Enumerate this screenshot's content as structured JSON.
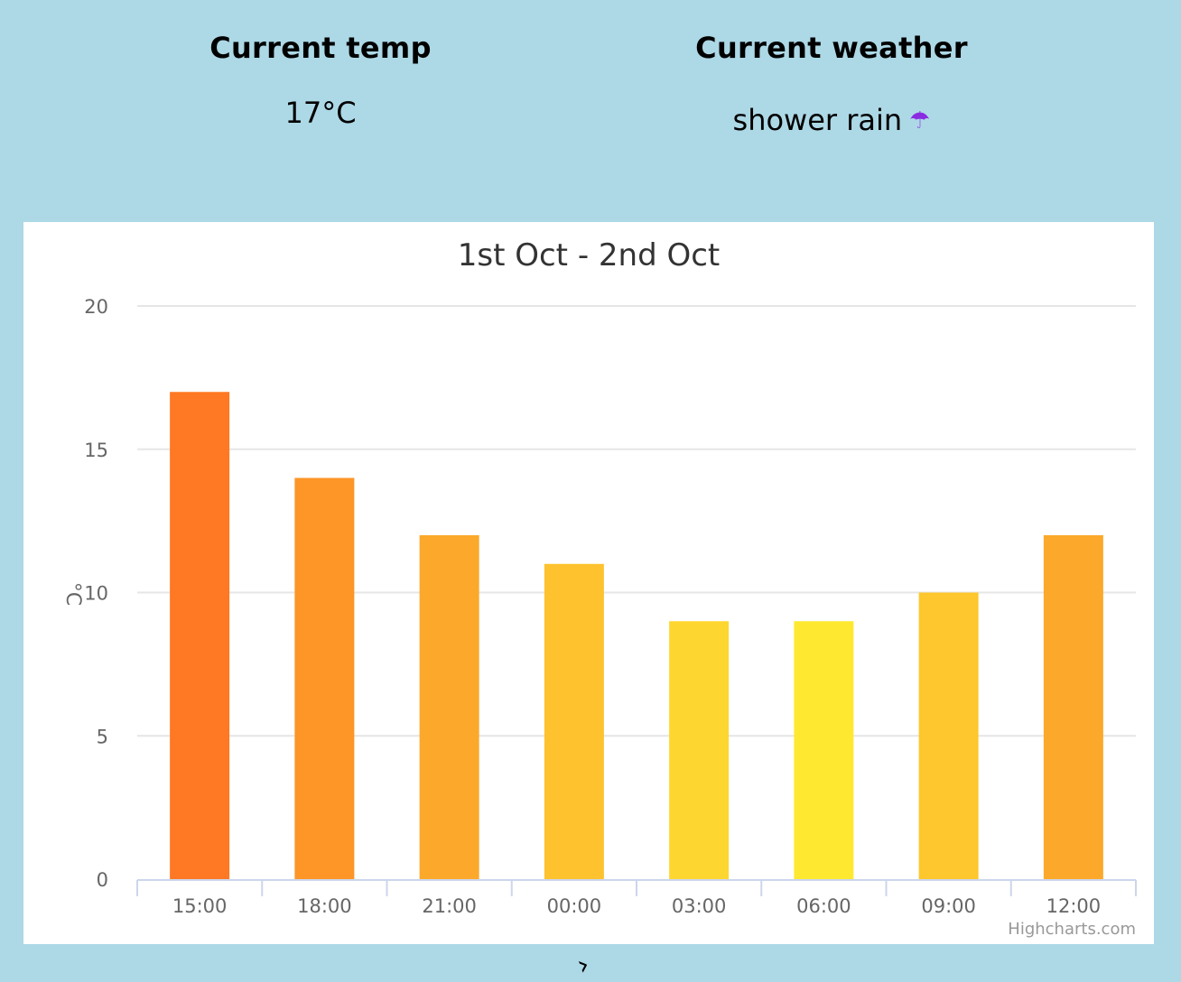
{
  "current_temp": {
    "heading": "Current temp",
    "value": "17°C"
  },
  "current_weather": {
    "heading": "Current weather",
    "value": "shower rain",
    "icon": "umbrella-icon"
  },
  "chart_data": {
    "type": "bar",
    "title": "1st Oct - 2nd Oct",
    "xlabel": "",
    "ylabel": "°C",
    "categories": [
      "15:00",
      "18:00",
      "21:00",
      "00:00",
      "03:00",
      "06:00",
      "09:00",
      "12:00"
    ],
    "values": [
      17,
      14,
      12,
      11,
      9,
      9,
      10,
      12
    ],
    "bar_colors": [
      "#ff7823",
      "#fd9527",
      "#fca82a",
      "#fdc22e",
      "#fed630",
      "#ffe930",
      "#fdc72d",
      "#fca82a"
    ],
    "ylim": [
      0,
      20
    ],
    "yticks": [
      0,
      5,
      10,
      15,
      20
    ],
    "grid": true,
    "legend": "none",
    "credit": "Highcharts.com"
  }
}
